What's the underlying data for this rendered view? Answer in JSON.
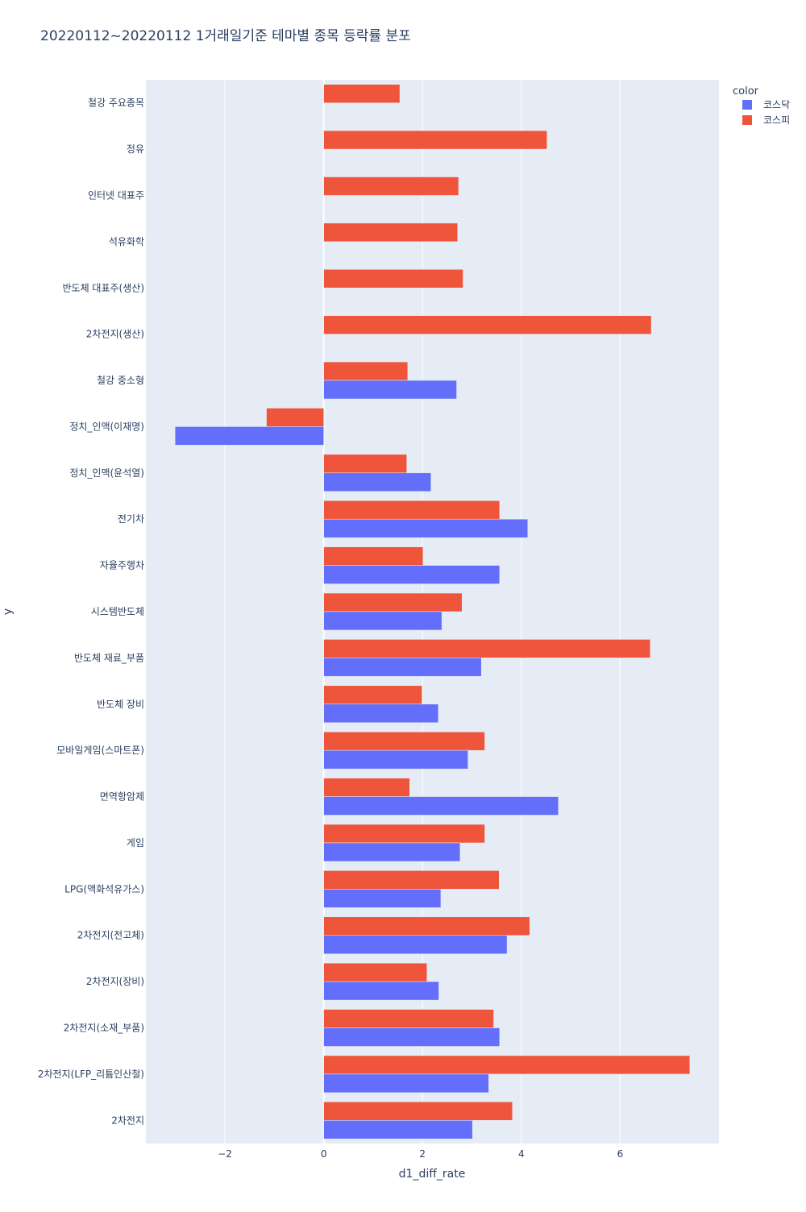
{
  "chart_data": {
    "type": "bar",
    "orientation": "horizontal",
    "barmode": "group",
    "title": "20220112~20220112 1거래일기준 테마별 종목 등락률 분포",
    "xlabel": "d1_diff_rate",
    "ylabel": "y",
    "xlim": [
      -3.6,
      8.0
    ],
    "xticks": [
      -2,
      0,
      2,
      4,
      6
    ],
    "xtick_labels": [
      "−2",
      "0",
      "2",
      "4",
      "6"
    ],
    "grid": true,
    "legend": {
      "title": "color",
      "placement": "top-right"
    },
    "categories": [
      "철강 주요종목",
      "정유",
      "인터넷 대표주",
      "석유화학",
      "반도체 대표주(생산)",
      "2차전지(생산)",
      "철강 중소형",
      "정치_인맥(이재명)",
      "정치_인맥(윤석열)",
      "전기차",
      "자율주행차",
      "시스템반도체",
      "반도체 재료_부품",
      "반도체 장비",
      "모바일게임(스마트폰)",
      "면역항암제",
      "게임",
      "LPG(액화석유가스)",
      "2차전지(전고체)",
      "2차전지(장비)",
      "2차전지(소재_부품)",
      "2차전지(LFP_리튬인산철)",
      "2차전지"
    ],
    "series": [
      {
        "name": "코스닥",
        "color": "#636efa",
        "values": [
          null,
          null,
          null,
          null,
          null,
          null,
          2.69,
          -3.01,
          2.17,
          4.13,
          3.56,
          2.39,
          3.19,
          2.32,
          2.92,
          4.75,
          2.76,
          2.37,
          3.71,
          2.33,
          3.56,
          3.34,
          3.01
        ]
      },
      {
        "name": "코스피",
        "color": "#ef553b",
        "values": [
          1.54,
          4.52,
          2.73,
          2.71,
          2.82,
          6.63,
          1.7,
          -1.16,
          1.68,
          3.56,
          2.01,
          2.8,
          6.61,
          1.99,
          3.26,
          1.74,
          3.26,
          3.55,
          4.17,
          2.09,
          3.44,
          7.41,
          3.82
        ]
      }
    ]
  }
}
